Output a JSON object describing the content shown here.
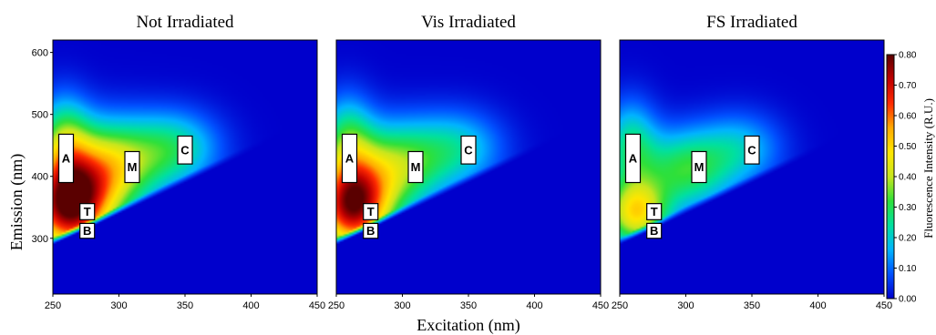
{
  "chart_data": {
    "type": "heatmap",
    "xlabel": "Excitation (nm)",
    "ylabel": "Emission (nm)",
    "colorbar_label": "Fluorescence Intensity (R.U.)",
    "xlim": [
      250,
      450
    ],
    "ylim": [
      210,
      620
    ],
    "x_ticks": [
      "250",
      "300",
      "350",
      "400",
      "450"
    ],
    "y_ticks": [
      "300",
      "400",
      "500",
      "600"
    ],
    "colorbar_range": [
      0.0,
      0.8
    ],
    "colorbar_ticks": [
      "0.00",
      "0.10",
      "0.20",
      "0.30",
      "0.40",
      "0.50",
      "0.60",
      "0.70",
      "0.80"
    ],
    "colorscale": [
      "#0000cc",
      "#0050ff",
      "#00b4ff",
      "#00e0a0",
      "#2ee03a",
      "#c8e61e",
      "#ffe600",
      "#ffaa00",
      "#ff2a00",
      "#c00000",
      "#5a0000"
    ],
    "peaks": [
      {
        "label": "A",
        "ex": 260,
        "em_low": 390,
        "em_high": 468
      },
      {
        "label": "T",
        "ex": 276,
        "em_low": 330,
        "em_high": 356
      },
      {
        "label": "B",
        "ex": 276,
        "em_low": 300,
        "em_high": 324
      },
      {
        "label": "M",
        "ex": 310,
        "em_low": 390,
        "em_high": 440
      },
      {
        "label": "C",
        "ex": 350,
        "em_low": 420,
        "em_high": 465
      }
    ],
    "panels": [
      {
        "title": "Not Irradiated",
        "components": [
          {
            "ex": 262,
            "em": 350,
            "sx": 22,
            "sy": 52,
            "amp": 0.74
          },
          {
            "ex": 292,
            "em": 415,
            "sx": 26,
            "sy": 52,
            "amp": 0.42
          },
          {
            "ex": 342,
            "em": 445,
            "sx": 24,
            "sy": 42,
            "amp": 0.24
          },
          {
            "ex": 258,
            "em": 455,
            "sx": 14,
            "sy": 52,
            "amp": 0.28
          }
        ]
      },
      {
        "title": "Vis Irradiated",
        "components": [
          {
            "ex": 262,
            "em": 350,
            "sx": 20,
            "sy": 50,
            "amp": 0.72
          },
          {
            "ex": 295,
            "em": 415,
            "sx": 25,
            "sy": 50,
            "amp": 0.34
          },
          {
            "ex": 342,
            "em": 445,
            "sx": 24,
            "sy": 42,
            "amp": 0.2
          },
          {
            "ex": 258,
            "em": 455,
            "sx": 14,
            "sy": 52,
            "amp": 0.26
          }
        ]
      },
      {
        "title": "FS Irradiated",
        "components": [
          {
            "ex": 262,
            "em": 340,
            "sx": 17,
            "sy": 38,
            "amp": 0.46
          },
          {
            "ex": 300,
            "em": 410,
            "sx": 24,
            "sy": 45,
            "amp": 0.3
          },
          {
            "ex": 342,
            "em": 445,
            "sx": 22,
            "sy": 40,
            "amp": 0.17
          },
          {
            "ex": 258,
            "em": 450,
            "sx": 14,
            "sy": 50,
            "amp": 0.24
          }
        ]
      }
    ]
  }
}
